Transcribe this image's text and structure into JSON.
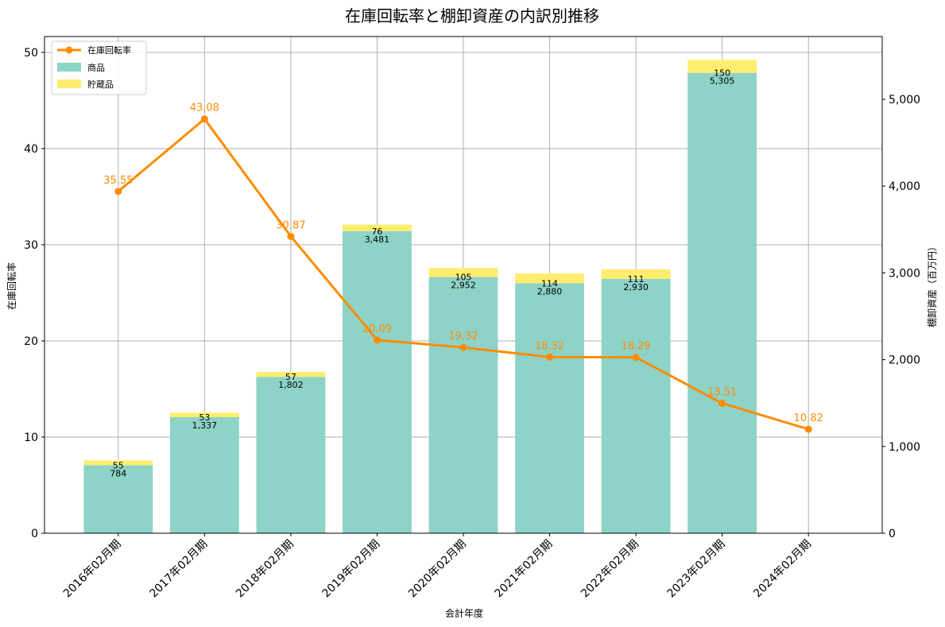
{
  "chart_data": {
    "type": "bar",
    "title": "在庫回転率と棚卸資産の内訳別推移",
    "xlabel": "会計年度",
    "ylabel": "在庫回転率",
    "ylabel_right": "棚卸資産（百万円）",
    "categories": [
      "2016年02月期",
      "2017年02月期",
      "2018年02月期",
      "2019年02月期",
      "2020年02月期",
      "2021年02月期",
      "2022年02月期",
      "2023年02月期",
      "2024年02月期"
    ],
    "ylim": [
      0,
      51.65
    ],
    "ylim_right": [
      0,
      5723
    ],
    "yticks": [
      0,
      10,
      20,
      30,
      40,
      50
    ],
    "yticks_right": [
      0,
      1000,
      2000,
      3000,
      4000,
      5000
    ],
    "ytick_labels_right": [
      "0",
      "1,000",
      "2,000",
      "3,000",
      "4,000",
      "5,000"
    ],
    "grid": true,
    "legend_position": "top-left",
    "series": [
      {
        "name": "在庫回転率",
        "type": "line",
        "axis": "left",
        "color": "#ff8c00",
        "values": [
          35.55,
          43.08,
          30.87,
          20.09,
          19.32,
          18.32,
          18.29,
          13.51,
          10.82
        ],
        "labels": [
          "35.55",
          "43.08",
          "30.87",
          "20.09",
          "19.32",
          "18.32",
          "18.29",
          "13.51",
          "10.82"
        ]
      },
      {
        "name": "商品",
        "type": "bar",
        "axis": "right",
        "color": "#8dd3c7",
        "values": [
          784,
          1337,
          1802,
          3481,
          2952,
          2880,
          2930,
          5305,
          null
        ],
        "labels": [
          "784",
          "1,337",
          "1,802",
          "3,481",
          "2,952",
          "2,880",
          "2,930",
          "5,305",
          null
        ]
      },
      {
        "name": "貯蔵品",
        "type": "bar",
        "axis": "right",
        "stacked": true,
        "color": "#ffed6f",
        "values": [
          55,
          53,
          57,
          76,
          105,
          114,
          111,
          150,
          null
        ],
        "labels": [
          "55",
          "53",
          "57",
          "76",
          "105",
          "114",
          "111",
          "150",
          null
        ]
      }
    ]
  }
}
